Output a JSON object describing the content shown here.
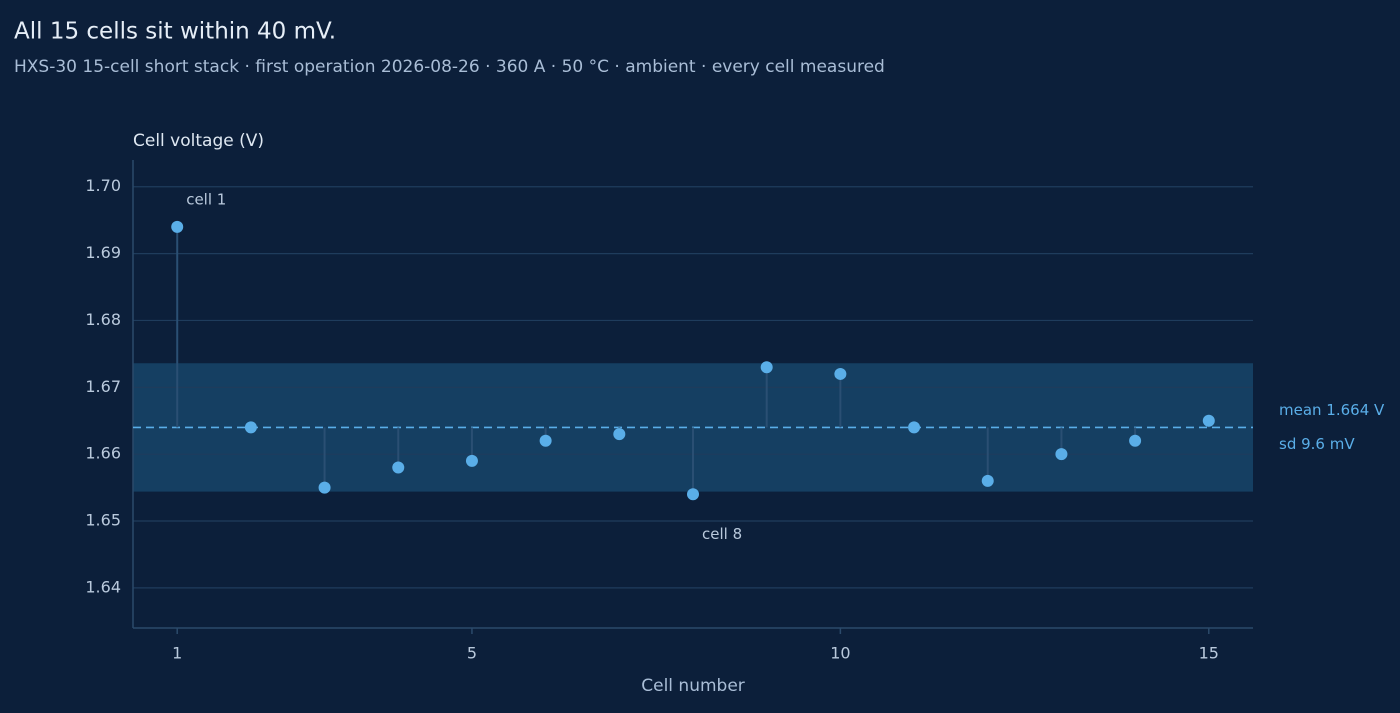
{
  "chart_data": {
    "type": "lollipop",
    "title": "All 15 cells sit within 40 mV.",
    "subtitle": "HXS-30 15-cell short stack · first operation 2026-08-26 · 360 A · 50 °C · ambient · every cell measured",
    "y_label": "Cell voltage (V)",
    "x_label": "Cell number",
    "x": [
      1,
      2,
      3,
      4,
      5,
      6,
      7,
      8,
      9,
      10,
      11,
      12,
      13,
      14,
      15
    ],
    "series": [
      {
        "color": "#5aaee8",
        "values": [
          1.694,
          1.664,
          1.655,
          1.658,
          1.659,
          1.662,
          1.663,
          1.654,
          1.673,
          1.672,
          1.664,
          1.656,
          1.66,
          1.662,
          1.665
        ]
      }
    ],
    "mean": {
      "value": 1.664,
      "label": "mean 1.664 V"
    },
    "sd": {
      "value": 0.0096,
      "label": "sd 9.6 mV"
    },
    "annotations": [
      {
        "text": "cell 1",
        "x": 1
      },
      {
        "text": "cell 8",
        "x": 8
      }
    ],
    "xlim": [
      0.4,
      15.6
    ],
    "xticks": [
      1,
      5,
      10,
      15
    ],
    "ylim": [
      1.634,
      1.704
    ],
    "yticks": [
      {
        "value": 1.64,
        "label": "1.64"
      },
      {
        "value": 1.65,
        "label": "1.65"
      },
      {
        "value": 1.66,
        "label": "1.66"
      },
      {
        "value": 1.67,
        "label": "1.67"
      },
      {
        "value": 1.68,
        "label": "1.68"
      },
      {
        "value": 1.69,
        "label": "1.69"
      },
      {
        "value": 1.7,
        "label": "1.70"
      }
    ],
    "grid": true
  }
}
